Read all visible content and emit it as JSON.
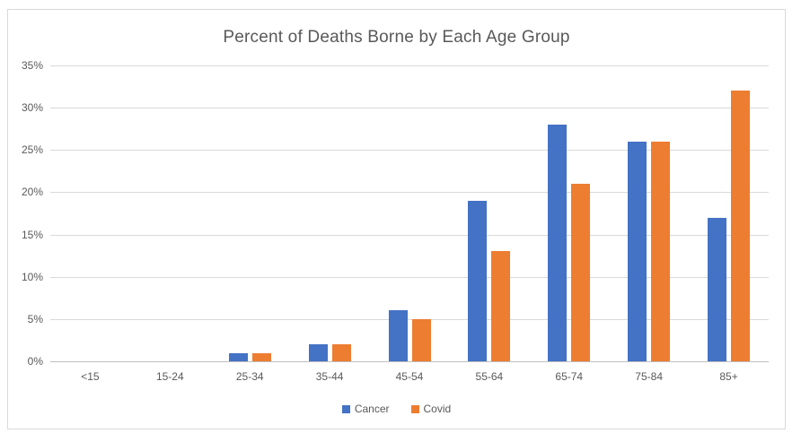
{
  "window": {
    "background": "#FFFFFF",
    "frame_border_color": "#D9D9D9"
  },
  "chart_data": {
    "type": "bar",
    "title": "Percent of Deaths Borne by Each Age Group",
    "categories": [
      "<15",
      "15-24",
      "25-34",
      "35-44",
      "45-54",
      "55-64",
      "65-74",
      "75-84",
      "85+"
    ],
    "series": [
      {
        "name": "Cancer",
        "color": "#4472C4",
        "values": [
          0,
          0,
          1,
          2,
          6,
          19,
          28,
          26,
          17
        ]
      },
      {
        "name": "Covid",
        "color": "#ED7D31",
        "values": [
          0,
          0,
          1,
          2,
          5,
          13,
          21,
          26,
          32
        ]
      }
    ],
    "xlabel": "",
    "ylabel": "",
    "ylim": [
      0,
      35
    ],
    "ytick_step": 5,
    "ytick_labels": [
      "0%",
      "5%",
      "10%",
      "15%",
      "20%",
      "25%",
      "30%",
      "35%"
    ],
    "grid": true,
    "gridline_color": "#D9D9D9",
    "axis_line_color": "#BFBFBF",
    "text_color": "#595959",
    "legend_position": "bottom"
  }
}
